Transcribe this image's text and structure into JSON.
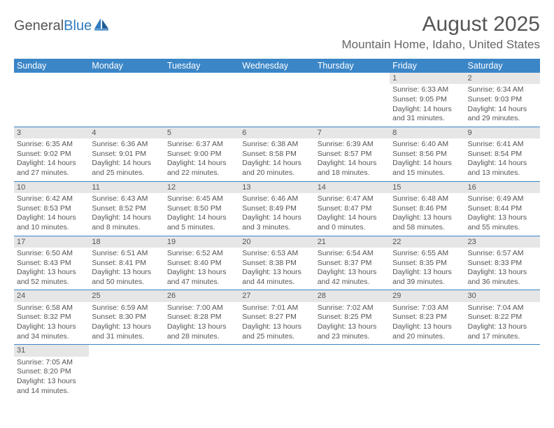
{
  "logo": {
    "word1": "General",
    "word2": "Blue"
  },
  "title": "August 2025",
  "location": "Mountain Home, Idaho, United States",
  "colors": {
    "header_bg": "#3b86c7",
    "daynum_bg": "#e6e6e6",
    "text": "#555555",
    "rule": "#3b86c7"
  },
  "day_headers": [
    "Sunday",
    "Monday",
    "Tuesday",
    "Wednesday",
    "Thursday",
    "Friday",
    "Saturday"
  ],
  "weeks": [
    [
      null,
      null,
      null,
      null,
      null,
      {
        "n": "1",
        "sr": "Sunrise: 6:33 AM",
        "ss": "Sunset: 9:05 PM",
        "dl": "Daylight: 14 hours and 31 minutes."
      },
      {
        "n": "2",
        "sr": "Sunrise: 6:34 AM",
        "ss": "Sunset: 9:03 PM",
        "dl": "Daylight: 14 hours and 29 minutes."
      }
    ],
    [
      {
        "n": "3",
        "sr": "Sunrise: 6:35 AM",
        "ss": "Sunset: 9:02 PM",
        "dl": "Daylight: 14 hours and 27 minutes."
      },
      {
        "n": "4",
        "sr": "Sunrise: 6:36 AM",
        "ss": "Sunset: 9:01 PM",
        "dl": "Daylight: 14 hours and 25 minutes."
      },
      {
        "n": "5",
        "sr": "Sunrise: 6:37 AM",
        "ss": "Sunset: 9:00 PM",
        "dl": "Daylight: 14 hours and 22 minutes."
      },
      {
        "n": "6",
        "sr": "Sunrise: 6:38 AM",
        "ss": "Sunset: 8:58 PM",
        "dl": "Daylight: 14 hours and 20 minutes."
      },
      {
        "n": "7",
        "sr": "Sunrise: 6:39 AM",
        "ss": "Sunset: 8:57 PM",
        "dl": "Daylight: 14 hours and 18 minutes."
      },
      {
        "n": "8",
        "sr": "Sunrise: 6:40 AM",
        "ss": "Sunset: 8:56 PM",
        "dl": "Daylight: 14 hours and 15 minutes."
      },
      {
        "n": "9",
        "sr": "Sunrise: 6:41 AM",
        "ss": "Sunset: 8:54 PM",
        "dl": "Daylight: 14 hours and 13 minutes."
      }
    ],
    [
      {
        "n": "10",
        "sr": "Sunrise: 6:42 AM",
        "ss": "Sunset: 8:53 PM",
        "dl": "Daylight: 14 hours and 10 minutes."
      },
      {
        "n": "11",
        "sr": "Sunrise: 6:43 AM",
        "ss": "Sunset: 8:52 PM",
        "dl": "Daylight: 14 hours and 8 minutes."
      },
      {
        "n": "12",
        "sr": "Sunrise: 6:45 AM",
        "ss": "Sunset: 8:50 PM",
        "dl": "Daylight: 14 hours and 5 minutes."
      },
      {
        "n": "13",
        "sr": "Sunrise: 6:46 AM",
        "ss": "Sunset: 8:49 PM",
        "dl": "Daylight: 14 hours and 3 minutes."
      },
      {
        "n": "14",
        "sr": "Sunrise: 6:47 AM",
        "ss": "Sunset: 8:47 PM",
        "dl": "Daylight: 14 hours and 0 minutes."
      },
      {
        "n": "15",
        "sr": "Sunrise: 6:48 AM",
        "ss": "Sunset: 8:46 PM",
        "dl": "Daylight: 13 hours and 58 minutes."
      },
      {
        "n": "16",
        "sr": "Sunrise: 6:49 AM",
        "ss": "Sunset: 8:44 PM",
        "dl": "Daylight: 13 hours and 55 minutes."
      }
    ],
    [
      {
        "n": "17",
        "sr": "Sunrise: 6:50 AM",
        "ss": "Sunset: 8:43 PM",
        "dl": "Daylight: 13 hours and 52 minutes."
      },
      {
        "n": "18",
        "sr": "Sunrise: 6:51 AM",
        "ss": "Sunset: 8:41 PM",
        "dl": "Daylight: 13 hours and 50 minutes."
      },
      {
        "n": "19",
        "sr": "Sunrise: 6:52 AM",
        "ss": "Sunset: 8:40 PM",
        "dl": "Daylight: 13 hours and 47 minutes."
      },
      {
        "n": "20",
        "sr": "Sunrise: 6:53 AM",
        "ss": "Sunset: 8:38 PM",
        "dl": "Daylight: 13 hours and 44 minutes."
      },
      {
        "n": "21",
        "sr": "Sunrise: 6:54 AM",
        "ss": "Sunset: 8:37 PM",
        "dl": "Daylight: 13 hours and 42 minutes."
      },
      {
        "n": "22",
        "sr": "Sunrise: 6:55 AM",
        "ss": "Sunset: 8:35 PM",
        "dl": "Daylight: 13 hours and 39 minutes."
      },
      {
        "n": "23",
        "sr": "Sunrise: 6:57 AM",
        "ss": "Sunset: 8:33 PM",
        "dl": "Daylight: 13 hours and 36 minutes."
      }
    ],
    [
      {
        "n": "24",
        "sr": "Sunrise: 6:58 AM",
        "ss": "Sunset: 8:32 PM",
        "dl": "Daylight: 13 hours and 34 minutes."
      },
      {
        "n": "25",
        "sr": "Sunrise: 6:59 AM",
        "ss": "Sunset: 8:30 PM",
        "dl": "Daylight: 13 hours and 31 minutes."
      },
      {
        "n": "26",
        "sr": "Sunrise: 7:00 AM",
        "ss": "Sunset: 8:28 PM",
        "dl": "Daylight: 13 hours and 28 minutes."
      },
      {
        "n": "27",
        "sr": "Sunrise: 7:01 AM",
        "ss": "Sunset: 8:27 PM",
        "dl": "Daylight: 13 hours and 25 minutes."
      },
      {
        "n": "28",
        "sr": "Sunrise: 7:02 AM",
        "ss": "Sunset: 8:25 PM",
        "dl": "Daylight: 13 hours and 23 minutes."
      },
      {
        "n": "29",
        "sr": "Sunrise: 7:03 AM",
        "ss": "Sunset: 8:23 PM",
        "dl": "Daylight: 13 hours and 20 minutes."
      },
      {
        "n": "30",
        "sr": "Sunrise: 7:04 AM",
        "ss": "Sunset: 8:22 PM",
        "dl": "Daylight: 13 hours and 17 minutes."
      }
    ],
    [
      {
        "n": "31",
        "sr": "Sunrise: 7:05 AM",
        "ss": "Sunset: 8:20 PM",
        "dl": "Daylight: 13 hours and 14 minutes."
      },
      null,
      null,
      null,
      null,
      null,
      null
    ]
  ]
}
